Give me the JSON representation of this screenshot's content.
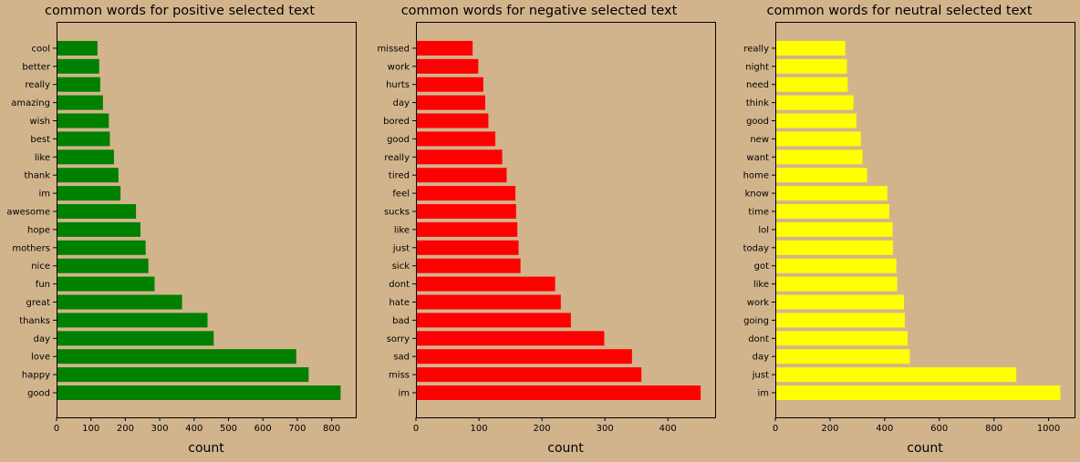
{
  "chart_data": [
    {
      "type": "bar",
      "orientation": "horizontal",
      "title": "common words for positive selected text",
      "xlabel": "count",
      "color": "#008000",
      "xlim": [
        0,
        870
      ],
      "xticks": [
        0,
        100,
        200,
        300,
        400,
        500,
        600,
        700,
        800
      ],
      "categories": [
        "good",
        "happy",
        "love",
        "day",
        "thanks",
        "great",
        "fun",
        "nice",
        "mothers",
        "hope",
        "awesome",
        "im",
        "thank",
        "like",
        "best",
        "wish",
        "amazing",
        "really",
        "better",
        "cool"
      ],
      "values": [
        826,
        733,
        697,
        457,
        439,
        365,
        285,
        267,
        259,
        244,
        231,
        186,
        180,
        167,
        155,
        152,
        135,
        127,
        124,
        119
      ]
    },
    {
      "type": "bar",
      "orientation": "horizontal",
      "title": "common words for negative selected text",
      "xlabel": "count",
      "color": "#ff0000",
      "xlim": [
        0,
        475
      ],
      "xticks": [
        0,
        100,
        200,
        300,
        400
      ],
      "categories": [
        "im",
        "miss",
        "sad",
        "sorry",
        "bad",
        "hate",
        "dont",
        "sick",
        "just",
        "like",
        "sucks",
        "feel",
        "tired",
        "really",
        "good",
        "bored",
        "day",
        "hurts",
        "work",
        "missed"
      ],
      "values": [
        452,
        358,
        343,
        299,
        246,
        230,
        221,
        166,
        163,
        161,
        159,
        158,
        144,
        137,
        126,
        115,
        110,
        107,
        99,
        90
      ]
    },
    {
      "type": "bar",
      "orientation": "horizontal",
      "title": "common words for neutral selected text",
      "xlabel": "count",
      "color": "#ffff00",
      "xlim": [
        0,
        1095
      ],
      "xticks": [
        0,
        200,
        400,
        600,
        800,
        1000
      ],
      "categories": [
        "im",
        "just",
        "day",
        "dont",
        "going",
        "work",
        "like",
        "got",
        "today",
        "lol",
        "time",
        "know",
        "home",
        "want",
        "new",
        "good",
        "think",
        "need",
        "night",
        "really"
      ],
      "values": [
        1043,
        882,
        492,
        484,
        474,
        471,
        446,
        443,
        430,
        429,
        417,
        410,
        336,
        319,
        313,
        297,
        286,
        265,
        262,
        256
      ]
    }
  ]
}
